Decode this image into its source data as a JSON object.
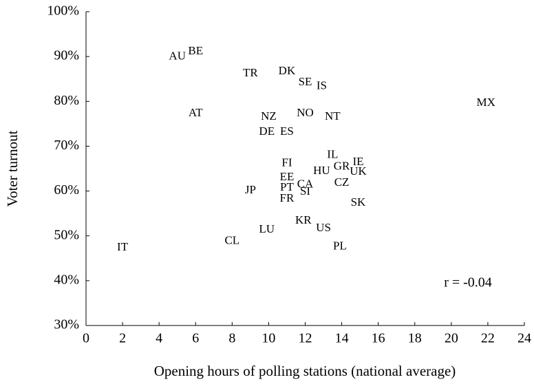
{
  "chart_data": {
    "type": "scatter",
    "title_hidden": null,
    "xlabel": "Opening hours of polling stations (national average)",
    "ylabel": "Voter turnout",
    "annotation": "r = -0.04",
    "labels": [
      "AU",
      "BE",
      "TR",
      "DK",
      "SE",
      "IS",
      "AT",
      "NZ",
      "NO",
      "NT",
      "MX",
      "DE",
      "ES",
      "IL",
      "FI",
      "IE",
      "GR",
      "UK",
      "HU",
      "EE",
      "CA",
      "CZ",
      "JP",
      "PT",
      "SI",
      "FR",
      "SK",
      "KR",
      "US",
      "LU",
      "CL",
      "PL",
      "IT"
    ],
    "x": [
      5.0,
      6.0,
      9.0,
      11.0,
      12.0,
      12.9,
      6.0,
      10.0,
      12.0,
      13.5,
      21.9,
      9.9,
      11.0,
      13.5,
      11.0,
      14.9,
      14.0,
      14.9,
      12.9,
      11.0,
      12.0,
      14.0,
      9.0,
      11.0,
      12.0,
      11.0,
      14.9,
      11.9,
      13.0,
      9.9,
      8.0,
      13.9,
      2.0
    ],
    "values": [
      89.9,
      91.1,
      86.2,
      86.6,
      84.2,
      83.3,
      77.3,
      76.5,
      77.3,
      76.5,
      79.6,
      73.1,
      73.1,
      68.0,
      66.1,
      66.4,
      65.4,
      64.2,
      64.4,
      63.0,
      61.4,
      61.8,
      60.1,
      60.7,
      59.8,
      58.2,
      57.3,
      53.3,
      51.6,
      51.3,
      48.8,
      47.6,
      47.3
    ],
    "color": "#000000",
    "xlim": [
      0,
      24
    ],
    "xticks": [
      0,
      2,
      4,
      6,
      8,
      10,
      12,
      14,
      16,
      18,
      20,
      22,
      24
    ],
    "ylim": [
      30,
      100
    ],
    "yticks": [
      {
        "value": 30,
        "label": "30%"
      },
      {
        "value": 40,
        "label": "40%"
      },
      {
        "value": 50,
        "label": "50%"
      },
      {
        "value": 60,
        "label": "60%"
      },
      {
        "value": 70,
        "label": "70%"
      },
      {
        "value": 80,
        "label": "80%"
      },
      {
        "value": 90,
        "label": "90%"
      },
      {
        "value": 100,
        "label": "100%"
      }
    ],
    "grid": false
  }
}
